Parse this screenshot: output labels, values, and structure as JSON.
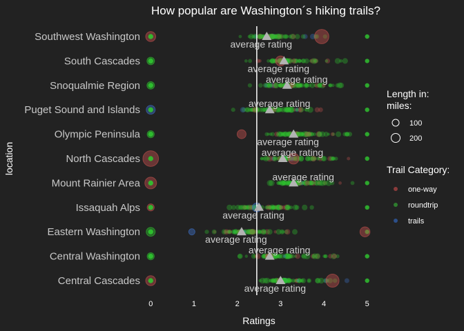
{
  "chart_data": {
    "type": "scatter",
    "title": "How popular are Washington´s hiking trails?",
    "xlabel": "Ratings",
    "ylabel": "location",
    "xlim": [
      -0.1,
      5.1
    ],
    "xticks": [
      0,
      1,
      2,
      3,
      4,
      5
    ],
    "vline_x": 2.45,
    "average_label": "average rating",
    "locations": [
      "Central Cascades",
      "Central Washington",
      "Eastern Washington",
      "Issaquah Alps",
      "Mount Rainier Area",
      "North Cascades",
      "Olympic Peninsula",
      "Puget Sound and Islands",
      "Snoqualmie Region",
      "South Cascades",
      "Southwest Washington"
    ],
    "averages": [
      {
        "location": "Southwest Washington",
        "rating": 2.68,
        "label_pos": "below"
      },
      {
        "location": "South Cascades",
        "rating": 3.08,
        "label_pos": "below"
      },
      {
        "location": "Snoqualmie Region",
        "rating": 3.15,
        "label_pos": "above"
      },
      {
        "location": "Puget Sound and Islands",
        "rating": 2.75,
        "label_pos": "above"
      },
      {
        "location": "Olympic Peninsula",
        "rating": 3.3,
        "label_pos": "below"
      },
      {
        "location": "North Cascades",
        "rating": 3.05,
        "label_pos": "above"
      },
      {
        "location": "Mount Rainier Area",
        "rating": 3.3,
        "label_pos": "above"
      },
      {
        "location": "Issaquah Alps",
        "rating": 2.5,
        "label_pos": "below"
      },
      {
        "location": "Eastern Washington",
        "rating": 2.1,
        "label_pos": "below"
      },
      {
        "location": "Central Washington",
        "rating": 2.75,
        "label_pos": "above"
      },
      {
        "location": "Central Cascades",
        "rating": 3.0,
        "label_pos": "below"
      }
    ],
    "highlight_points": [
      {
        "location": "Southwest Washington",
        "rating": 0,
        "length": 60,
        "category": "one-way"
      },
      {
        "location": "Southwest Washington",
        "rating": 3.95,
        "length": 180,
        "category": "one-way"
      },
      {
        "location": "South Cascades",
        "rating": 0,
        "length": 20,
        "category": "roundtrip"
      },
      {
        "location": "Snoqualmie Region",
        "rating": 0,
        "length": 20,
        "category": "roundtrip"
      },
      {
        "location": "Puget Sound and Islands",
        "rating": 0,
        "length": 40,
        "category": "trails"
      },
      {
        "location": "Olympic Peninsula",
        "rating": 0,
        "length": 15,
        "category": "roundtrip"
      },
      {
        "location": "Olympic Peninsula",
        "rating": 2.1,
        "length": 40,
        "category": "one-way"
      },
      {
        "location": "North Cascades",
        "rating": 0,
        "length": 230,
        "category": "one-way"
      },
      {
        "location": "North Cascades",
        "rating": 3.3,
        "length": 80,
        "category": "one-way"
      },
      {
        "location": "Mount Rainier Area",
        "rating": 0,
        "length": 100,
        "category": "one-way"
      },
      {
        "location": "Issaquah Alps",
        "rating": 0,
        "length": 15,
        "category": "one-way"
      },
      {
        "location": "Issaquah Alps",
        "rating": 2.45,
        "length": 40,
        "category": "trails"
      },
      {
        "location": "Eastern Washington",
        "rating": 0,
        "length": 40,
        "category": "roundtrip"
      },
      {
        "location": "Eastern Washington",
        "rating": 0.95,
        "length": 8,
        "category": "trails"
      },
      {
        "location": "Eastern Washington",
        "rating": 4.95,
        "length": 60,
        "category": "one-way"
      },
      {
        "location": "Central Washington",
        "rating": 0,
        "length": 15,
        "category": "roundtrip"
      },
      {
        "location": "Central Cascades",
        "rating": 0,
        "length": 60,
        "category": "one-way"
      },
      {
        "location": "Central Cascades",
        "rating": 4.2,
        "length": 140,
        "category": "one-way"
      },
      {
        "location": "South Cascades",
        "rating": 3.0,
        "length": 60,
        "category": "one-way"
      }
    ],
    "legend": {
      "size_title_line1": "Length in:",
      "size_title_line2": "miles:",
      "size_items": [
        {
          "label": "100",
          "value": 100
        },
        {
          "label": "200",
          "value": 200
        }
      ],
      "category_title": "Trail Category:",
      "category_items": [
        {
          "label": "one-way",
          "color": "#8a3b3b"
        },
        {
          "label": "roundtrip",
          "color": "#2e7d2e"
        },
        {
          "label": "trails",
          "color": "#2c4f8a"
        }
      ],
      "position": "right"
    },
    "colors": {
      "background": "#222222",
      "one-way": "#c0504d",
      "roundtrip": "#2fbf2f",
      "trails": "#3d6fc4",
      "average_marker": "#b3b3b3",
      "vline": "#ffffff"
    },
    "grid": false
  }
}
